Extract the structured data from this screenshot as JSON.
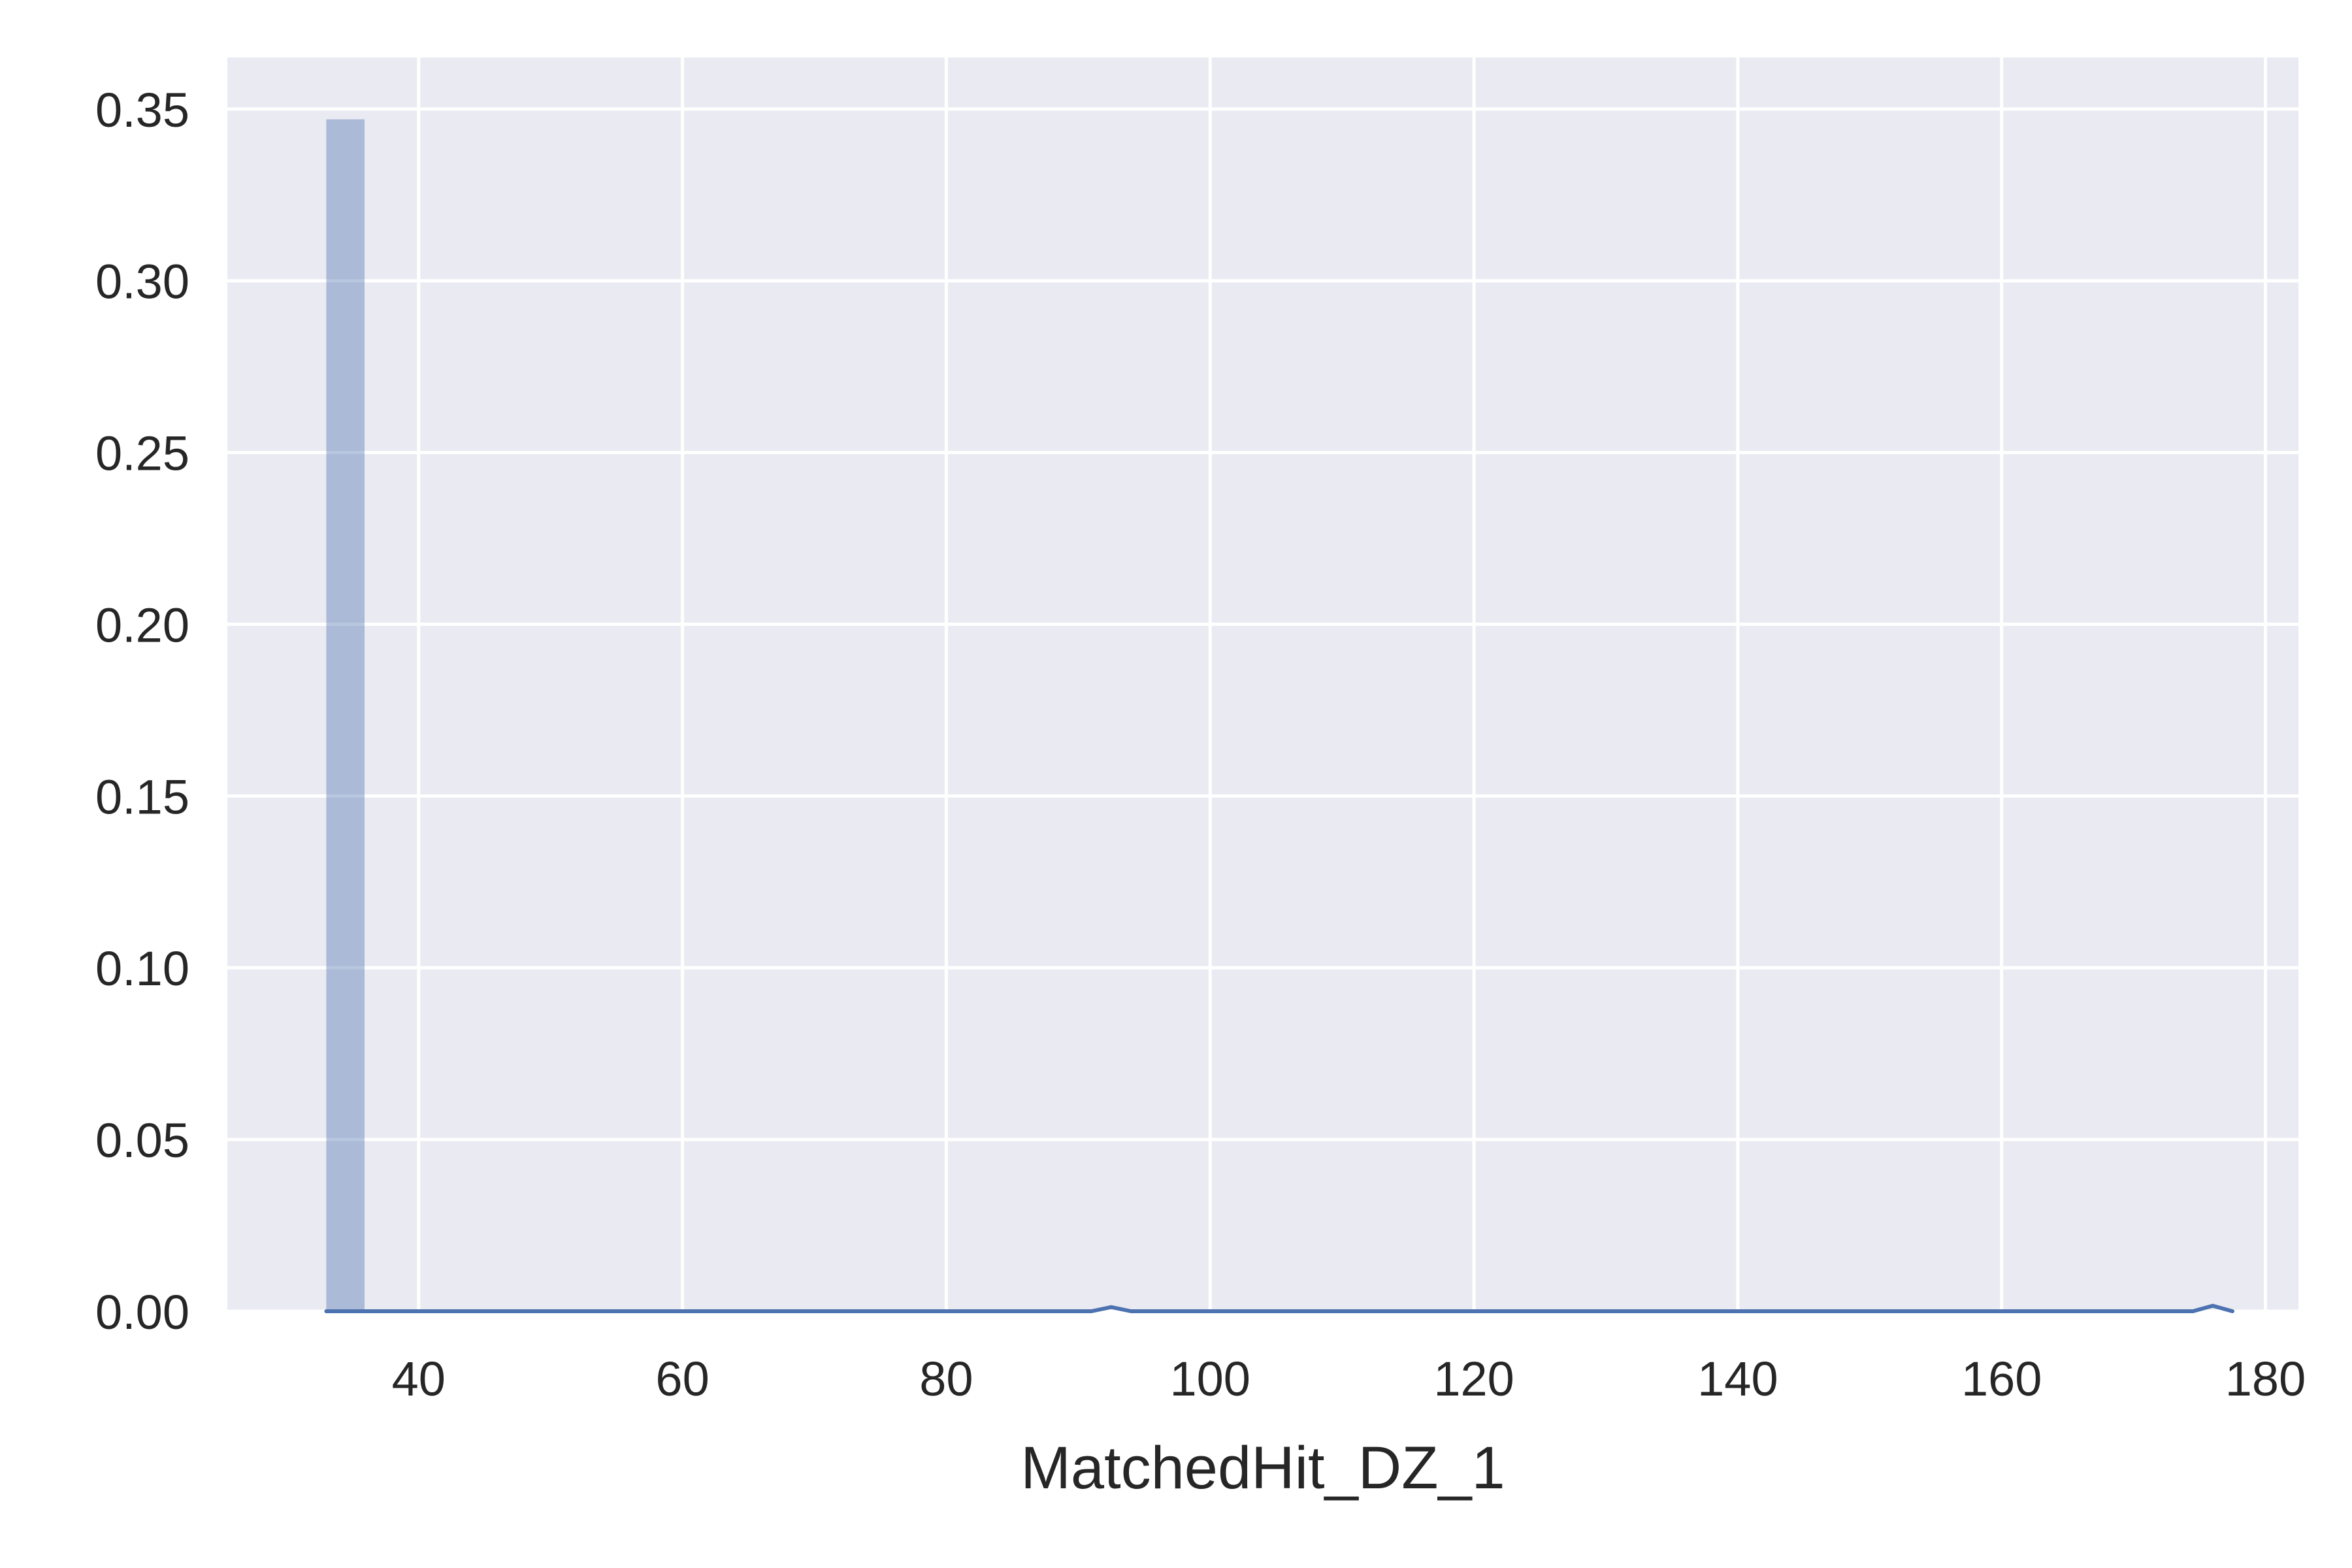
{
  "chart_data": {
    "type": "histogram",
    "title": "",
    "xlabel": "MatchedHit_DZ_1",
    "ylabel": "",
    "xlim": [
      25.5,
      182.5
    ],
    "ylim": [
      0,
      0.365
    ],
    "grid": true,
    "legend": "none",
    "xticks": [
      40,
      60,
      80,
      100,
      120,
      140,
      160,
      180
    ],
    "xtick_labels": [
      "40",
      "60",
      "80",
      "100",
      "120",
      "140",
      "160",
      "180"
    ],
    "yticks": [
      0,
      0.05,
      0.1,
      0.15,
      0.2,
      0.25,
      0.3,
      0.35
    ],
    "ytick_labels": [
      "0.00",
      "0.05",
      "0.10",
      "0.15",
      "0.20",
      "0.25",
      "0.30",
      "0.35"
    ],
    "bars": [
      {
        "x0": 33.0,
        "x1": 35.9,
        "density": 0.347
      }
    ],
    "kde": {
      "x": [
        33.0,
        33.5,
        40,
        60,
        80,
        91,
        92.5,
        94,
        120,
        160,
        174.5,
        176,
        177.5
      ],
      "y": [
        0.0,
        0.0,
        0.0,
        0.0,
        0.0,
        0.0,
        0.0012,
        0.0,
        0.0,
        0.0,
        0.0,
        0.0016,
        0.0
      ]
    },
    "colors": {
      "background": "#eaeaf2",
      "grid": "#ffffff",
      "bar": "#4c72b0",
      "kde": "#4c72b0",
      "text": "#262626"
    }
  }
}
